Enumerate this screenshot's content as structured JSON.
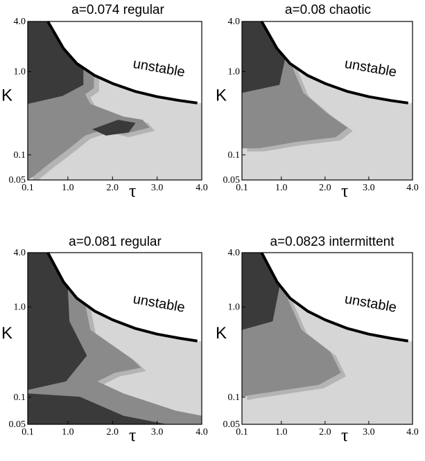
{
  "chart_data": [
    {
      "type": "heatmap",
      "title": "a=0.074 regular",
      "xlabel": "τ",
      "ylabel": "K",
      "x_ticks": [
        "0.1",
        "1.0",
        "2.0",
        "3.0",
        "4.0"
      ],
      "x_tick_values": [
        0.1,
        1.0,
        2.0,
        3.0,
        4.0
      ],
      "y_ticks": [
        "4.0",
        "1.0",
        "0.1",
        "0.05"
      ],
      "y_tick_values": [
        4.0,
        1.0,
        0.1,
        0.05
      ],
      "xlim": [
        0.1,
        4.0
      ],
      "ylim": [
        0.05,
        4.0
      ],
      "y_scale": "log",
      "region_label": "unstable",
      "regime": "regular",
      "a": 0.074
    },
    {
      "type": "heatmap",
      "title": "a=0.08 chaotic",
      "xlabel": "τ",
      "ylabel": "K",
      "x_ticks": [
        "0.1",
        "1.0",
        "2.0",
        "3.0",
        "4.0"
      ],
      "x_tick_values": [
        0.1,
        1.0,
        2.0,
        3.0,
        4.0
      ],
      "y_ticks": [
        "4.0",
        "1.0",
        "0.1",
        "0.05"
      ],
      "y_tick_values": [
        4.0,
        1.0,
        0.1,
        0.05
      ],
      "xlim": [
        0.1,
        4.0
      ],
      "ylim": [
        0.05,
        4.0
      ],
      "y_scale": "log",
      "region_label": "unstable",
      "regime": "chaotic",
      "a": 0.08
    },
    {
      "type": "heatmap",
      "title": "a=0.081 regular",
      "xlabel": "τ",
      "ylabel": "K",
      "x_ticks": [
        "0.1",
        "1.0",
        "2.0",
        "3.0",
        "4.0"
      ],
      "x_tick_values": [
        0.1,
        1.0,
        2.0,
        3.0,
        4.0
      ],
      "y_ticks": [
        "4.0",
        "1.0",
        "0.1",
        "0.05"
      ],
      "y_tick_values": [
        4.0,
        1.0,
        0.1,
        0.05
      ],
      "xlim": [
        0.1,
        4.0
      ],
      "ylim": [
        0.05,
        4.0
      ],
      "y_scale": "log",
      "region_label": "unstable",
      "regime": "regular",
      "a": 0.081
    },
    {
      "type": "heatmap",
      "title": "a=0.0823 intermittent",
      "xlabel": "τ",
      "ylabel": "K",
      "x_ticks": [
        "0.1",
        "1.0",
        "2.0",
        "3.0",
        "4.0"
      ],
      "x_tick_values": [
        0.1,
        1.0,
        2.0,
        3.0,
        4.0
      ],
      "y_ticks": [
        "4.0",
        "1.0",
        "0.1",
        "0.05"
      ],
      "y_tick_values": [
        4.0,
        1.0,
        0.1,
        0.05
      ],
      "xlim": [
        0.1,
        4.0
      ],
      "ylim": [
        0.05,
        4.0
      ],
      "y_scale": "log",
      "region_label": "unstable",
      "regime": "intermittent",
      "a": 0.0823
    }
  ],
  "stability_boundary": {
    "tau": [
      0.55,
      0.9,
      1.2,
      1.6,
      2.0,
      2.5,
      3.0,
      3.5,
      3.9
    ],
    "K": [
      4.0,
      1.9,
      1.25,
      0.9,
      0.72,
      0.58,
      0.5,
      0.45,
      0.42
    ]
  },
  "colors": {
    "background": "#ffffff",
    "stable_region": "#d6d6d6",
    "mid_region": "#8a8a8a",
    "edge_region": "#b4b4b4",
    "dark_region": "#3a3a3a",
    "boundary": "#000000"
  }
}
